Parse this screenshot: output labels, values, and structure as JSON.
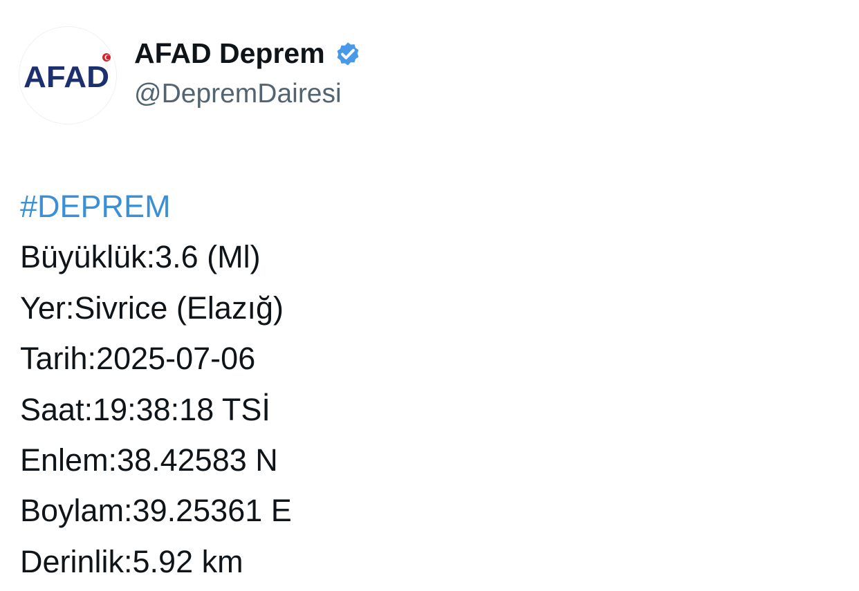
{
  "account": {
    "name": "AFAD Deprem",
    "handle": "@DepremDairesi",
    "verified": true,
    "avatar_logo_text": "AFAD",
    "avatar_icon": "afad-logo-icon",
    "badge_icon": "verified-badge-icon"
  },
  "colors": {
    "hashtag": "#3b8fd4",
    "verified": "#4a99e9",
    "logo": "#1c2f6e"
  },
  "tweet": {
    "hashtag": "#DEPREM",
    "lines": [
      "Büyüklük:3.6 (Ml)",
      "Yer:Sivrice (Elazığ)",
      "Tarih:2025-07-06",
      "Saat:19:38:18 TSİ",
      "Enlem:38.42583 N",
      "Boylam:39.25361 E",
      "Derinlik:5.92 km"
    ]
  }
}
